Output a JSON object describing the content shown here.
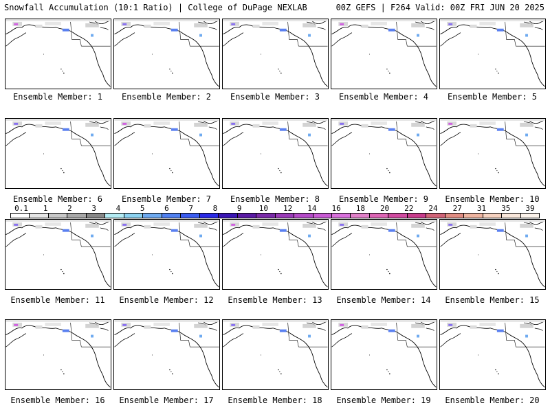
{
  "header": {
    "left": "Snowfall Accumulation (10:1 Ratio) | College of DuPage NEXLAB",
    "right": "00Z GEFS | F264 Valid: 00Z FRI JUN 20 2025"
  },
  "panels": [
    {
      "label": "Ensemble Member: 1"
    },
    {
      "label": "Ensemble Member: 2"
    },
    {
      "label": "Ensemble Member: 3"
    },
    {
      "label": "Ensemble Member: 4"
    },
    {
      "label": "Ensemble Member: 5"
    },
    {
      "label": "Ensemble Member: 6"
    },
    {
      "label": "Ensemble Member: 7"
    },
    {
      "label": "Ensemble Member: 8"
    },
    {
      "label": "Ensemble Member: 9"
    },
    {
      "label": "Ensemble Member: 10"
    },
    {
      "label": "Ensemble Member: 11"
    },
    {
      "label": "Ensemble Member: 12"
    },
    {
      "label": "Ensemble Member: 13"
    },
    {
      "label": "Ensemble Member: 14"
    },
    {
      "label": "Ensemble Member: 15"
    },
    {
      "label": "Ensemble Member: 16"
    },
    {
      "label": "Ensemble Member: 17"
    },
    {
      "label": "Ensemble Member: 18"
    },
    {
      "label": "Ensemble Member: 19"
    },
    {
      "label": "Ensemble Member: 20"
    }
  ],
  "colorbar": {
    "labels": [
      "0.1",
      "1",
      "2",
      "3",
      "4",
      "5",
      "6",
      "7",
      "8",
      "9",
      "10",
      "12",
      "14",
      "16",
      "18",
      "20",
      "22",
      "24",
      "27",
      "31",
      "35",
      "39"
    ],
    "colors": [
      "#ffffff",
      "#e6e6e6",
      "#c8c8c8",
      "#a8a8a8",
      "#888888",
      "#b4ecf4",
      "#8cd2f0",
      "#6eaaf0",
      "#5080f0",
      "#3a5cf0",
      "#2a2ae6",
      "#3a16b4",
      "#5a1aa4",
      "#7a2aa8",
      "#9a3ab8",
      "#b44ac8",
      "#c85ad4",
      "#d870dc",
      "#e080c8",
      "#dc64b4",
      "#d04aa0",
      "#c83c8c",
      "#d06478",
      "#e08c82",
      "#eeb4a0",
      "#f6d2c0",
      "#fae8dc",
      "#fdf4ec"
    ]
  }
}
